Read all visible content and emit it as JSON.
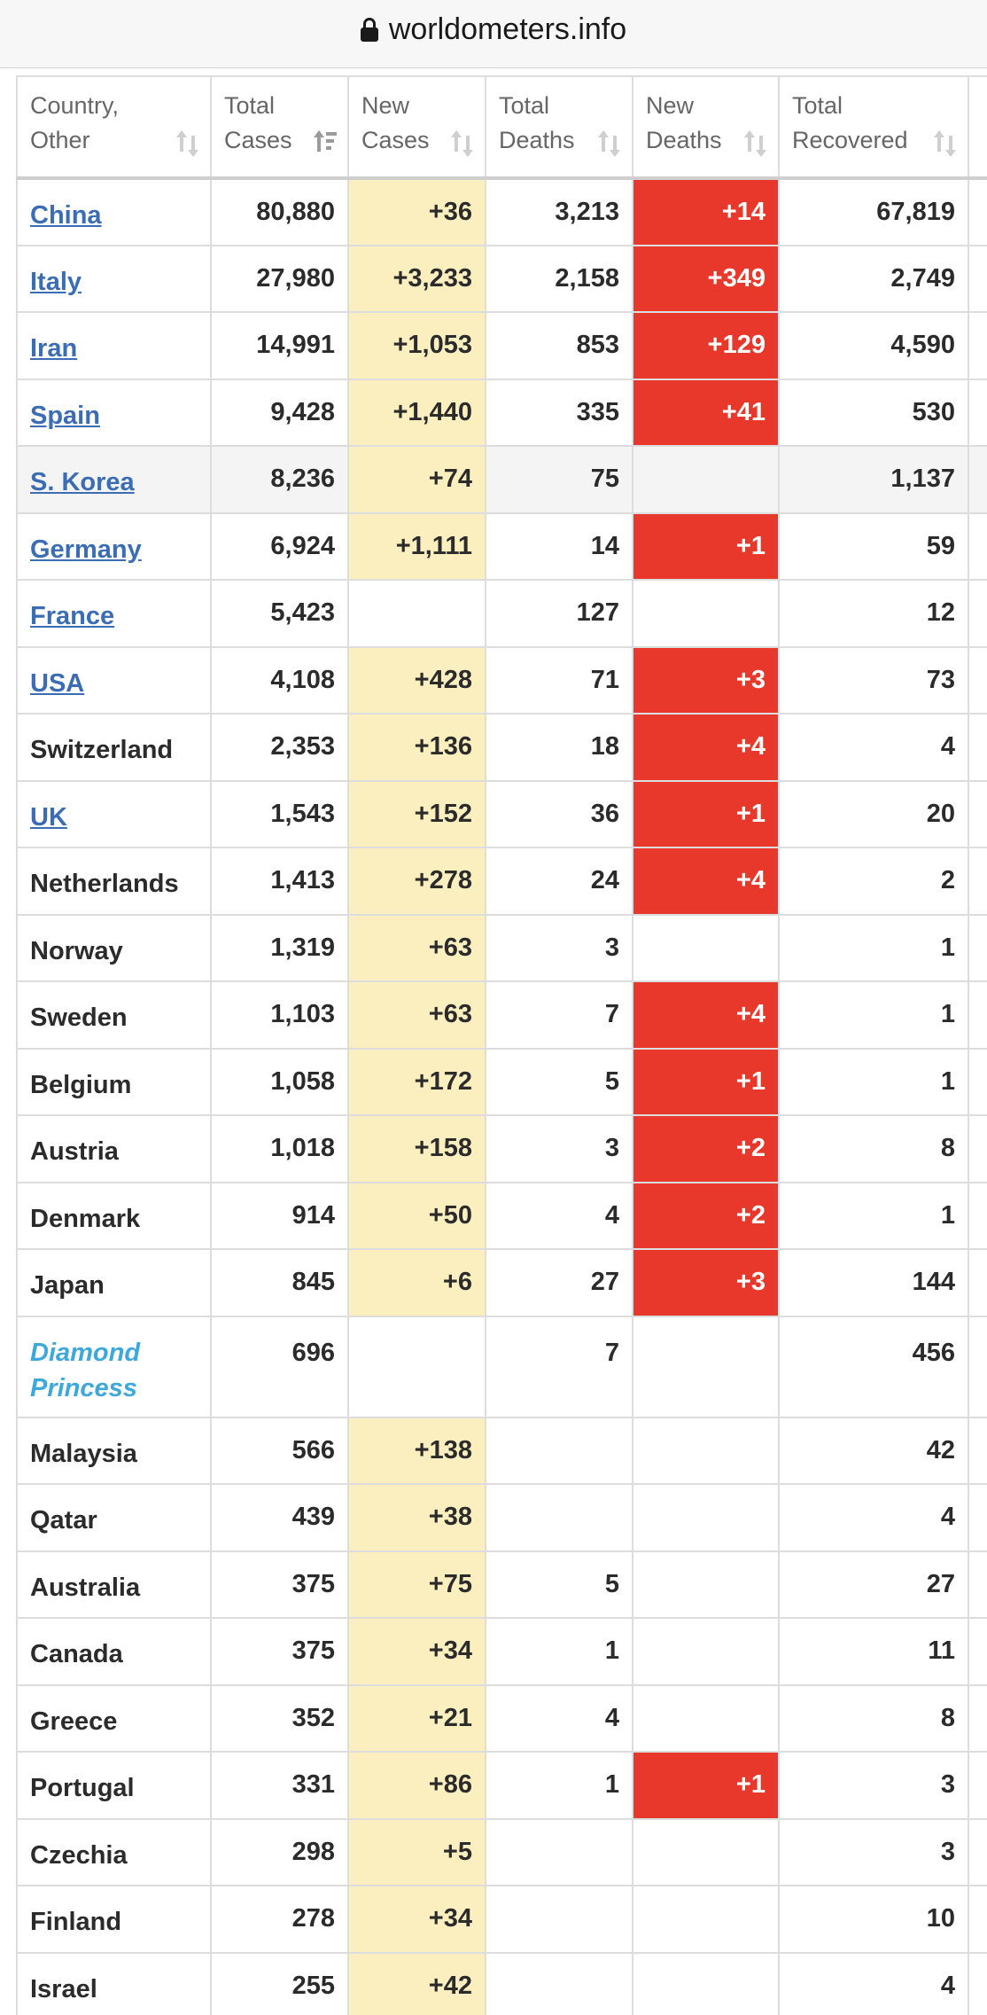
{
  "browser": {
    "url": "worldometers.info"
  },
  "table": {
    "headers": [
      {
        "label": "Country, Other",
        "sort": "both"
      },
      {
        "label": "Total Cases",
        "sort": "desc"
      },
      {
        "label": "New Cases",
        "sort": "both"
      },
      {
        "label": "Total Deaths",
        "sort": "both"
      },
      {
        "label": "New Deaths",
        "sort": "both"
      },
      {
        "label": "Total Recovered",
        "sort": "both"
      },
      {
        "label": "",
        "sort": "none"
      }
    ],
    "colors": {
      "new_cases_bg": "#fcefbf",
      "new_deaths_bg": "#e8382b",
      "link": "#3b6db5",
      "ship_link": "#3ea8db"
    },
    "rows": [
      {
        "country": "China",
        "link": true,
        "total_cases": "80,880",
        "new_cases": "+36",
        "total_deaths": "3,213",
        "new_deaths": "+14",
        "total_recovered": "67,819"
      },
      {
        "country": "Italy",
        "link": true,
        "total_cases": "27,980",
        "new_cases": "+3,233",
        "total_deaths": "2,158",
        "new_deaths": "+349",
        "total_recovered": "2,749"
      },
      {
        "country": "Iran",
        "link": true,
        "total_cases": "14,991",
        "new_cases": "+1,053",
        "total_deaths": "853",
        "new_deaths": "+129",
        "total_recovered": "4,590"
      },
      {
        "country": "Spain",
        "link": true,
        "total_cases": "9,428",
        "new_cases": "+1,440",
        "total_deaths": "335",
        "new_deaths": "+41",
        "total_recovered": "530"
      },
      {
        "country": "S. Korea",
        "link": true,
        "highlight": true,
        "total_cases": "8,236",
        "new_cases": "+74",
        "total_deaths": "75",
        "new_deaths": "",
        "total_recovered": "1,137"
      },
      {
        "country": "Germany",
        "link": true,
        "total_cases": "6,924",
        "new_cases": "+1,111",
        "total_deaths": "14",
        "new_deaths": "+1",
        "total_recovered": "59"
      },
      {
        "country": "France",
        "link": true,
        "total_cases": "5,423",
        "new_cases": "",
        "total_deaths": "127",
        "new_deaths": "",
        "total_recovered": "12"
      },
      {
        "country": "USA",
        "link": true,
        "total_cases": "4,108",
        "new_cases": "+428",
        "total_deaths": "71",
        "new_deaths": "+3",
        "total_recovered": "73"
      },
      {
        "country": "Switzerland",
        "link": false,
        "total_cases": "2,353",
        "new_cases": "+136",
        "total_deaths": "18",
        "new_deaths": "+4",
        "total_recovered": "4"
      },
      {
        "country": "UK",
        "link": true,
        "total_cases": "1,543",
        "new_cases": "+152",
        "total_deaths": "36",
        "new_deaths": "+1",
        "total_recovered": "20"
      },
      {
        "country": "Netherlands",
        "link": false,
        "total_cases": "1,413",
        "new_cases": "+278",
        "total_deaths": "24",
        "new_deaths": "+4",
        "total_recovered": "2"
      },
      {
        "country": "Norway",
        "link": false,
        "total_cases": "1,319",
        "new_cases": "+63",
        "total_deaths": "3",
        "new_deaths": "",
        "total_recovered": "1"
      },
      {
        "country": "Sweden",
        "link": false,
        "total_cases": "1,103",
        "new_cases": "+63",
        "total_deaths": "7",
        "new_deaths": "+4",
        "total_recovered": "1"
      },
      {
        "country": "Belgium",
        "link": false,
        "total_cases": "1,058",
        "new_cases": "+172",
        "total_deaths": "5",
        "new_deaths": "+1",
        "total_recovered": "1"
      },
      {
        "country": "Austria",
        "link": false,
        "total_cases": "1,018",
        "new_cases": "+158",
        "total_deaths": "3",
        "new_deaths": "+2",
        "total_recovered": "8"
      },
      {
        "country": "Denmark",
        "link": false,
        "total_cases": "914",
        "new_cases": "+50",
        "total_deaths": "4",
        "new_deaths": "+2",
        "total_recovered": "1"
      },
      {
        "country": "Japan",
        "link": false,
        "total_cases": "845",
        "new_cases": "+6",
        "total_deaths": "27",
        "new_deaths": "+3",
        "total_recovered": "144"
      },
      {
        "country": "Diamond Princess",
        "ship": true,
        "total_cases": "696",
        "new_cases": "",
        "total_deaths": "7",
        "new_deaths": "",
        "total_recovered": "456"
      },
      {
        "country": "Malaysia",
        "link": false,
        "total_cases": "566",
        "new_cases": "+138",
        "total_deaths": "",
        "new_deaths": "",
        "total_recovered": "42"
      },
      {
        "country": "Qatar",
        "link": false,
        "total_cases": "439",
        "new_cases": "+38",
        "total_deaths": "",
        "new_deaths": "",
        "total_recovered": "4"
      },
      {
        "country": "Australia",
        "link": false,
        "total_cases": "375",
        "new_cases": "+75",
        "total_deaths": "5",
        "new_deaths": "",
        "total_recovered": "27"
      },
      {
        "country": "Canada",
        "link": false,
        "total_cases": "375",
        "new_cases": "+34",
        "total_deaths": "1",
        "new_deaths": "",
        "total_recovered": "11"
      },
      {
        "country": "Greece",
        "link": false,
        "total_cases": "352",
        "new_cases": "+21",
        "total_deaths": "4",
        "new_deaths": "",
        "total_recovered": "8"
      },
      {
        "country": "Portugal",
        "link": false,
        "total_cases": "331",
        "new_cases": "+86",
        "total_deaths": "1",
        "new_deaths": "+1",
        "total_recovered": "3"
      },
      {
        "country": "Czechia",
        "link": false,
        "total_cases": "298",
        "new_cases": "+5",
        "total_deaths": "",
        "new_deaths": "",
        "total_recovered": "3"
      },
      {
        "country": "Finland",
        "link": false,
        "total_cases": "278",
        "new_cases": "+34",
        "total_deaths": "",
        "new_deaths": "",
        "total_recovered": "10"
      },
      {
        "country": "Israel",
        "link": false,
        "total_cases": "255",
        "new_cases": "+42",
        "total_deaths": "",
        "new_deaths": "",
        "total_recovered": "4"
      }
    ]
  }
}
